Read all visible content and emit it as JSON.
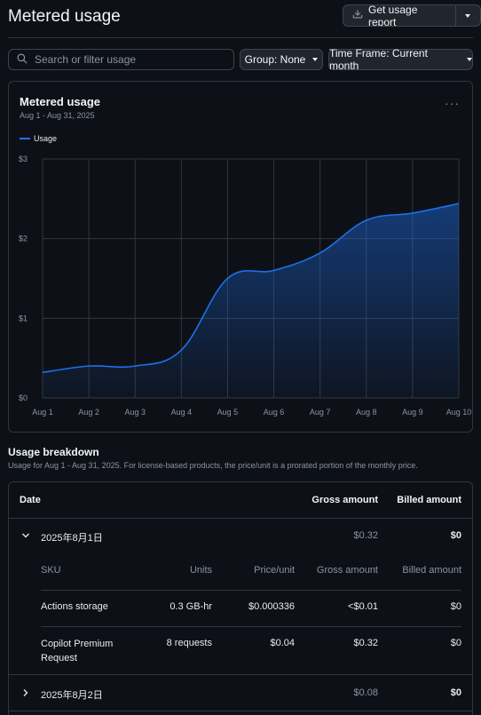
{
  "header": {
    "title": "Metered usage",
    "report_button": "Get usage report"
  },
  "filters": {
    "search_placeholder": "Search or filter usage",
    "group": "Group: None",
    "time_frame": "Time Frame: Current month"
  },
  "chart_card": {
    "title": "Metered usage",
    "subtitle": "Aug 1 - Aug 31, 2025",
    "menu_label": "···"
  },
  "chart_data": {
    "type": "area",
    "title": "Metered usage",
    "subtitle": "Aug 1 - Aug 31, 2025",
    "xlabel": "",
    "ylabel": "",
    "grid": true,
    "legend_position": "top-left",
    "x": [
      "Aug 1",
      "Aug 2",
      "Aug 3",
      "Aug 4",
      "Aug 5",
      "Aug 6",
      "Aug 7",
      "Aug 8",
      "Aug 9",
      "Aug 10"
    ],
    "y_ticks": [
      "$0",
      "$1",
      "$2",
      "$3"
    ],
    "ylim": [
      0,
      3
    ],
    "series": [
      {
        "name": "Usage",
        "color": "#1f6feb",
        "values": [
          0.32,
          0.4,
          0.4,
          0.6,
          1.5,
          1.6,
          1.82,
          2.23,
          2.32,
          2.44
        ]
      }
    ]
  },
  "breakdown": {
    "title": "Usage breakdown",
    "subtitle": "Usage for Aug 1 - Aug 31, 2025. For license-based products, the price/unit is a prorated portion of the monthly price.",
    "columns": {
      "date": "Date",
      "gross": "Gross amount",
      "billed": "Billed amount"
    },
    "sub_columns": {
      "sku": "SKU",
      "units": "Units",
      "price": "Price/unit",
      "gross": "Gross amount",
      "billed": "Billed amount"
    },
    "days": [
      {
        "date": "2025年8月1日",
        "gross": "$0.32",
        "billed": "$0",
        "expanded": true,
        "items": [
          {
            "sku": "Actions storage",
            "units": "0.3 GB-hr",
            "price": "$0.000336",
            "gross": "<$0.01",
            "billed": "$0"
          },
          {
            "sku": "Copilot Premium Request",
            "units": "8 requests",
            "price": "$0.04",
            "gross": "$0.32",
            "billed": "$0"
          }
        ]
      },
      {
        "date": "2025年8月2日",
        "gross": "$0.08",
        "billed": "$0",
        "expanded": false
      }
    ]
  }
}
